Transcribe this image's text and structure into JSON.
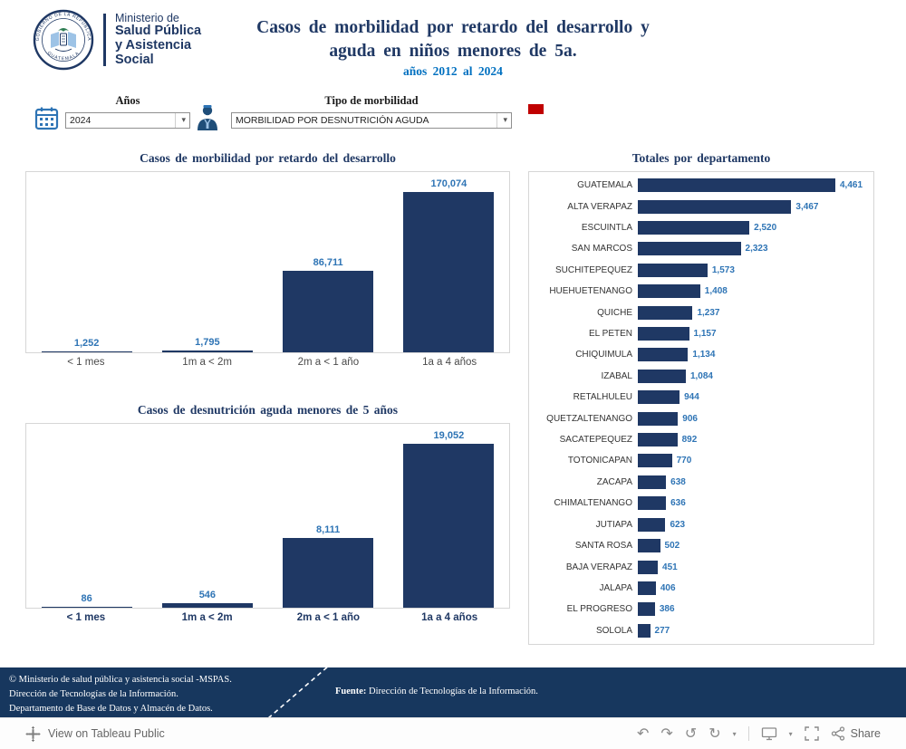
{
  "colors": {
    "bar": "#1F3864",
    "accent": "#2E74B5",
    "navy": "#1F3864",
    "subtitle": "#0070C0",
    "footer-bg": "#17375E",
    "red": "#C00000"
  },
  "header": {
    "seal": {
      "top": "GOBIERNO DE LA REPÚBLICA",
      "bottom": "GUATEMALA"
    },
    "ministry": [
      "Ministerio de",
      "Salud Pública",
      "y Asistencia",
      "Social"
    ],
    "title_line1": "Casos de morbilidad por retardo del desarrollo y",
    "title_line2": "aguda en niños menores de 5a.",
    "subtitle": "años 2012 al 2024"
  },
  "filters": {
    "years": {
      "label": "Años",
      "value": "2024"
    },
    "type": {
      "label": "Tipo de morbilidad",
      "value": "MORBILIDAD POR DESNUTRICIÓN AGUDA"
    }
  },
  "chart_data": [
    {
      "type": "bar",
      "title": "Casos de morbilidad por retardo del desarrollo",
      "categories": [
        "< 1 mes",
        "1m a < 2m",
        "2m a < 1 año",
        "1a a 4 años"
      ],
      "values": [
        1252,
        1795,
        86711,
        170074
      ],
      "value_labels": [
        "1,252",
        "1,795",
        "86,711",
        "170,074"
      ],
      "ylim": [
        0,
        180000
      ],
      "grid": false
    },
    {
      "type": "bar",
      "title": "Casos de desnutrición aguda menores de 5 años",
      "categories": [
        "< 1 mes",
        "1m a < 2m",
        "2m a < 1 año",
        "1a a 4 años"
      ],
      "values": [
        86,
        546,
        8111,
        19052
      ],
      "value_labels": [
        "86",
        "546",
        "8,111",
        "19,052"
      ],
      "ylim": [
        0,
        20000
      ],
      "grid": false
    },
    {
      "type": "bar",
      "orientation": "horizontal",
      "title": "Totales por departamento",
      "categories": [
        "GUATEMALA",
        "ALTA VERAPAZ",
        "ESCUINTLA",
        "SAN MARCOS",
        "SUCHITEPEQUEZ",
        "HUEHUETENANGO",
        "QUICHE",
        "EL PETEN",
        "CHIQUIMULA",
        "IZABAL",
        "RETALHULEU",
        "QUETZALTENANGO",
        "SACATEPEQUEZ",
        "TOTONICAPAN",
        "ZACAPA",
        "CHIMALTENANGO",
        "JUTIAPA",
        "SANTA ROSA",
        "BAJA VERAPAZ",
        "JALAPA",
        "EL PROGRESO",
        "SOLOLA"
      ],
      "values": [
        4461,
        3467,
        2520,
        2323,
        1573,
        1408,
        1237,
        1157,
        1134,
        1084,
        944,
        906,
        892,
        770,
        638,
        636,
        623,
        502,
        451,
        406,
        386,
        277
      ],
      "value_labels": [
        "4,461",
        "3,467",
        "2,520",
        "2,323",
        "1,573",
        "1,408",
        "1,237",
        "1,157",
        "1,134",
        "1,084",
        "944",
        "906",
        "892",
        "770",
        "638",
        "636",
        "623",
        "502",
        "451",
        "406",
        "386",
        "277"
      ],
      "grid": false,
      "legend": "none"
    }
  ],
  "footer": {
    "line1": "©  Ministerio de salud pública y asistencia social -MSPAS.",
    "line2": "Dirección de Tecnologías de la Información.",
    "line3": "Departamento de Base de Datos y Almacén de Datos.",
    "fuente_label": "Fuente:",
    "fuente_text": " Dirección de Tecnologías de la Información."
  },
  "tableau_bar": {
    "view_text": "View on Tableau Public",
    "share_label": "Share"
  },
  "icons": {
    "undo": "↶",
    "redo": "↷",
    "replay": "↺",
    "refresh": "↻",
    "caret": "▾"
  }
}
